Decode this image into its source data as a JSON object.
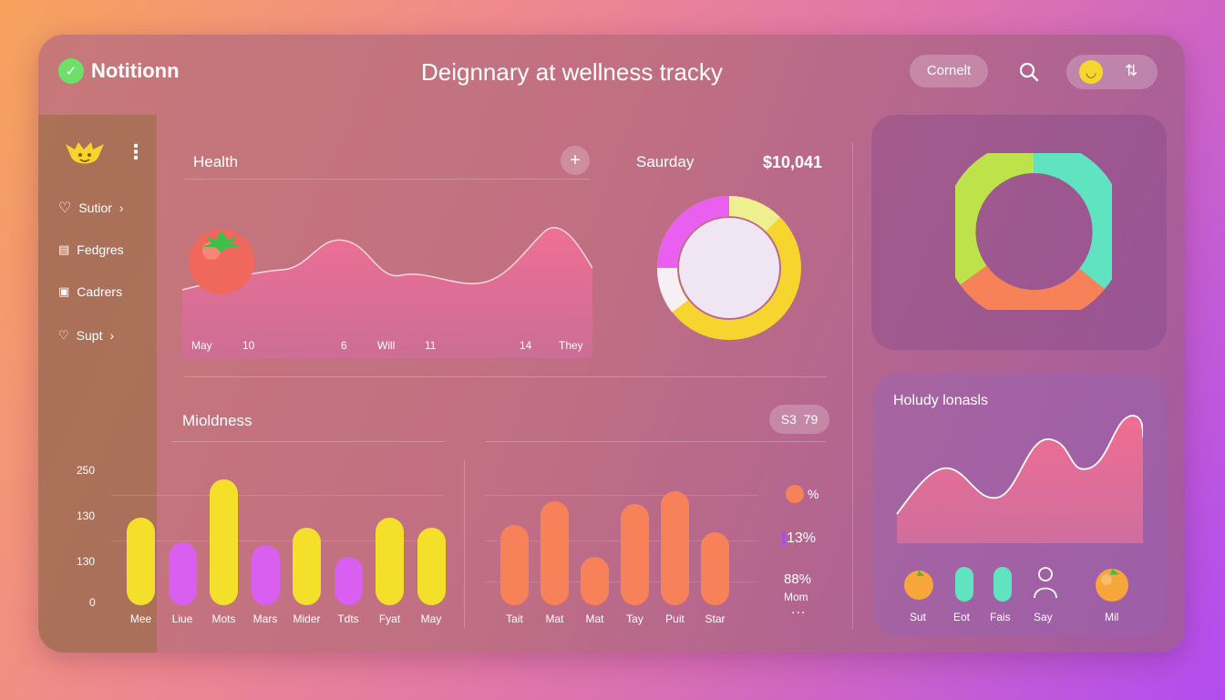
{
  "header": {
    "brand": "Notitionn",
    "title": "Deignnary at wellness tracky",
    "connect_label": "Cornelt"
  },
  "sidebar": {
    "items": [
      {
        "label": "Sutior",
        "icon": "heart-icon"
      },
      {
        "label": "Fedgres",
        "icon": "clipboard-icon"
      },
      {
        "label": "Cadrers",
        "icon": "calendar-icon"
      },
      {
        "label": "Supt",
        "icon": "chat-heart-icon"
      }
    ]
  },
  "health": {
    "title": "Health",
    "x_labels": [
      "May",
      "10",
      "6",
      "Will",
      "11",
      "14",
      "They"
    ]
  },
  "summary": {
    "day": "Saurday",
    "amount": "$10,041"
  },
  "mindness": {
    "title": "Mioldness",
    "badge_a": "S3",
    "badge_b": "79"
  },
  "chart_data": [
    {
      "type": "bar",
      "title": "",
      "categories": [
        "Mee",
        "Liue",
        "Mots",
        "Mars",
        "Mider",
        "Tdts",
        "Fyat",
        "May"
      ],
      "values": [
        180,
        130,
        260,
        125,
        160,
        100,
        180,
        160
      ],
      "colors": [
        "#f4df2a",
        "#d85ff0",
        "#f4df2a",
        "#d85ff0",
        "#f4df2a",
        "#d85ff0",
        "#f4df2a",
        "#f4df2a"
      ],
      "y_ticks": [
        "250",
        "130",
        "130",
        "0"
      ],
      "ylim": [
        0,
        280
      ]
    },
    {
      "type": "bar",
      "title": "",
      "categories": [
        "Tait",
        "Mat",
        "Mat",
        "Tay",
        "Puit",
        "Star"
      ],
      "values": [
        165,
        215,
        100,
        210,
        235,
        150
      ],
      "color": "#f7825a",
      "ylim": [
        0,
        280
      ]
    }
  ],
  "legend": {
    "item1": "%",
    "item2": "13%",
    "item3": "88%",
    "item3_sub": "Mom",
    "more": "..."
  },
  "holiday": {
    "title": "Holudy lonasls",
    "items": [
      "Sut",
      "Eot",
      "Fais",
      "Say",
      "Mil"
    ]
  },
  "colors": {
    "green": "#7ee06c",
    "yellow": "#f6d62e",
    "pink": "#e95fef",
    "orange": "#f7825a",
    "teal": "#5fe3c0"
  }
}
